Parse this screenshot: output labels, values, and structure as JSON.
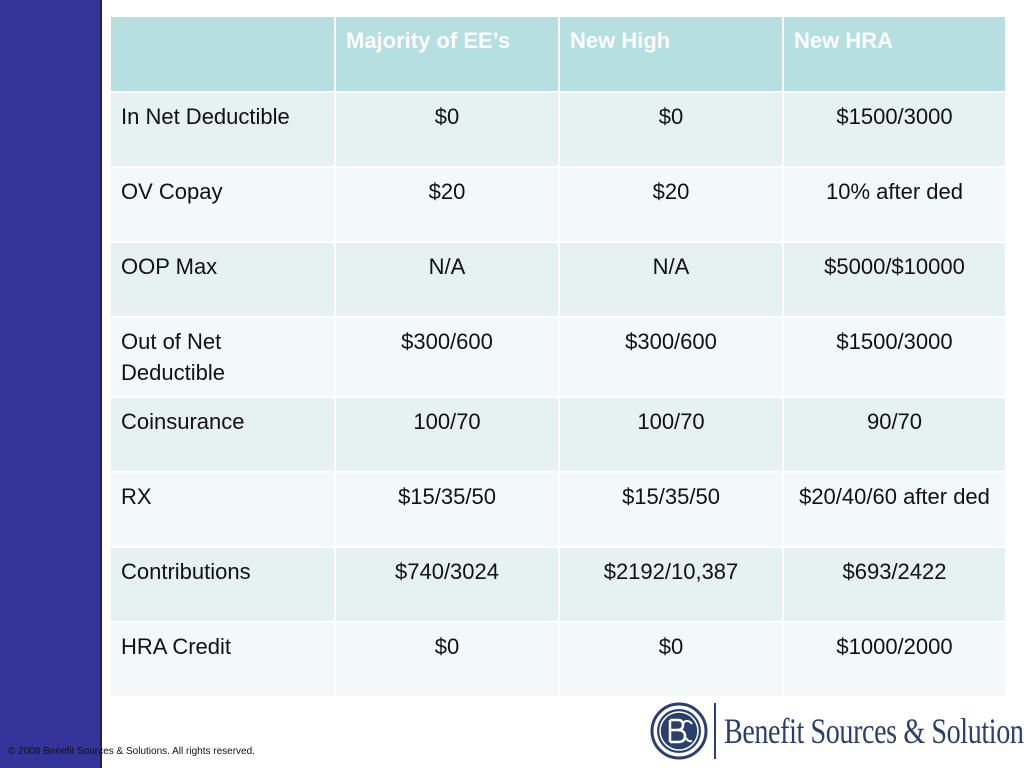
{
  "table": {
    "headers": [
      "",
      "Majority of EE’s",
      "New High",
      "New HRA"
    ],
    "rows": [
      {
        "label": "In Net Deductible",
        "values": [
          "$0",
          "$0",
          "$1500/3000"
        ]
      },
      {
        "label": "OV Copay",
        "values": [
          "$20",
          "$20",
          "10% after ded"
        ]
      },
      {
        "label": "OOP Max",
        "values": [
          "N/A",
          "N/A",
          "$5000/$10000"
        ]
      },
      {
        "label": "Out of Net Deductible",
        "values": [
          "$300/600",
          "$300/600",
          "$1500/3000"
        ]
      },
      {
        "label": "Coinsurance",
        "values": [
          "100/70",
          "100/70",
          "90/70"
        ]
      },
      {
        "label": "RX",
        "values": [
          "$15/35/50",
          "$15/35/50",
          "$20/40/60 after ded"
        ]
      },
      {
        "label": "Contributions",
        "values": [
          "$740/3024",
          "$2192/10,387",
          "$693/2422"
        ]
      },
      {
        "label": "HRA Credit",
        "values": [
          "$0",
          "$0",
          "$1000/2000"
        ]
      }
    ]
  },
  "footer": {
    "copyright": "© 2008 Benefit Sources & Solutions. All rights reserved."
  },
  "logo": {
    "mark_letters": "BSS",
    "name": "Benefit Sources & Solutions",
    "mark_icon": "bss-seal-icon"
  },
  "colors": {
    "sidebar": "#333399",
    "header_cell": "#b5dfe0",
    "row_odd": "#e6f1f2",
    "row_even": "#f3f8f8",
    "logo": "#2b3f6e"
  }
}
